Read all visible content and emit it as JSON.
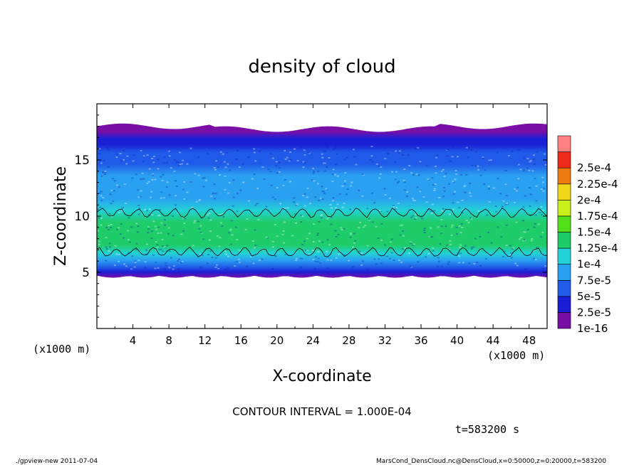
{
  "chart_data": {
    "type": "heatmap",
    "title": "density of cloud",
    "xlabel": "X-coordinate",
    "ylabel": "Z-coordinate",
    "x_unit_left": "(x1000 m)",
    "x_unit_right": "(x1000 m)",
    "xlim": [
      0,
      50
    ],
    "ylim": [
      0,
      20
    ],
    "x_ticks": [
      4,
      8,
      12,
      16,
      20,
      24,
      28,
      32,
      36,
      40,
      44,
      48
    ],
    "y_ticks": [
      5,
      10,
      15
    ],
    "colorbar": {
      "levels": [
        "1e-16",
        "2.5e-5",
        "5e-5",
        "7.5e-5",
        "1e-4",
        "1.25e-4",
        "1.5e-4",
        "1.75e-4",
        "2e-4",
        "2.25e-4",
        "2.5e-4"
      ],
      "colors": [
        "#7a0fa8",
        "#1a1fd6",
        "#1f5ae8",
        "#2aa0f0",
        "#22d2d6",
        "#1fcc6a",
        "#52e01a",
        "#c8f01a",
        "#f0d81a",
        "#f07a10",
        "#ee2a1a",
        "#ff8080"
      ]
    },
    "profile": {
      "z": [
        4.7,
        5.2,
        5.6,
        6.2,
        6.8,
        7.5,
        8.5,
        9.5,
        10.5,
        11.5,
        12.5,
        13.5,
        14.5,
        15.5,
        16.2,
        16.7,
        17.3,
        18.0
      ],
      "value": [
        0,
        2e-05,
        4.5e-05,
        7e-05,
        9.5e-05,
        0.00011,
        0.00012,
        0.00011,
        9e-05,
        7e-05,
        5.8e-05,
        5e-05,
        4.3e-05,
        3.5e-05,
        2e-05,
        1e-05,
        0,
        0
      ]
    },
    "contour_interval_label": "CONTOUR INTERVAL = 1.000E-04",
    "time_label": "t=583200 s"
  },
  "footer": {
    "left": "./gpview-new  2011-07-04",
    "right": "MarsCond_DensCloud.nc@DensCloud,x=0:50000,z=0:20000,t=583200"
  }
}
